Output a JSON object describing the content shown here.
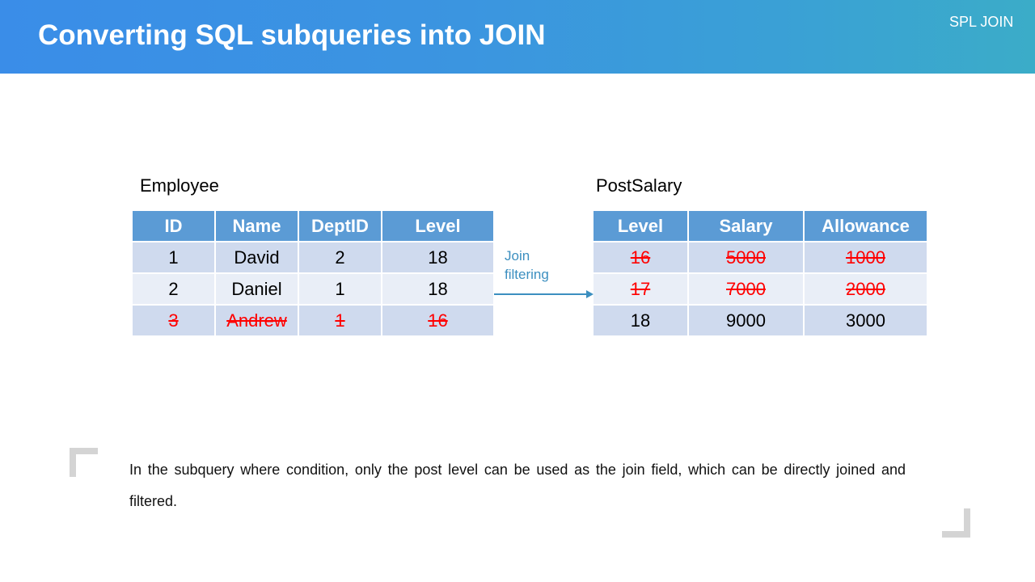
{
  "header": {
    "title": "Converting SQL subqueries into JOIN",
    "tag": "SPL JOIN"
  },
  "employee": {
    "label": "Employee",
    "columns": [
      "ID",
      "Name",
      "DeptID",
      "Level"
    ],
    "rows": [
      {
        "cells": [
          "1",
          "David",
          "2",
          "18"
        ],
        "struck": false
      },
      {
        "cells": [
          "2",
          "Daniel",
          "1",
          "18"
        ],
        "struck": false
      },
      {
        "cells": [
          "3",
          "Andrew",
          "1",
          "16"
        ],
        "struck": true
      }
    ]
  },
  "postsalary": {
    "label": "PostSalary",
    "columns": [
      "Level",
      "Salary",
      "Allowance"
    ],
    "rows": [
      {
        "cells": [
          "16",
          "5000",
          "1000"
        ],
        "struck": true
      },
      {
        "cells": [
          "17",
          "7000",
          "2000"
        ],
        "struck": true
      },
      {
        "cells": [
          "18",
          "9000",
          "3000"
        ],
        "struck": false
      }
    ]
  },
  "arrow": {
    "label": "Join filtering"
  },
  "note": "In the subquery where condition, only the post level can be used as the join field, which can be directly joined and filtered.",
  "colors": {
    "header_cell": "#5b9bd5",
    "struck_text": "#ff0000",
    "arrow": "#3c8fc0"
  }
}
